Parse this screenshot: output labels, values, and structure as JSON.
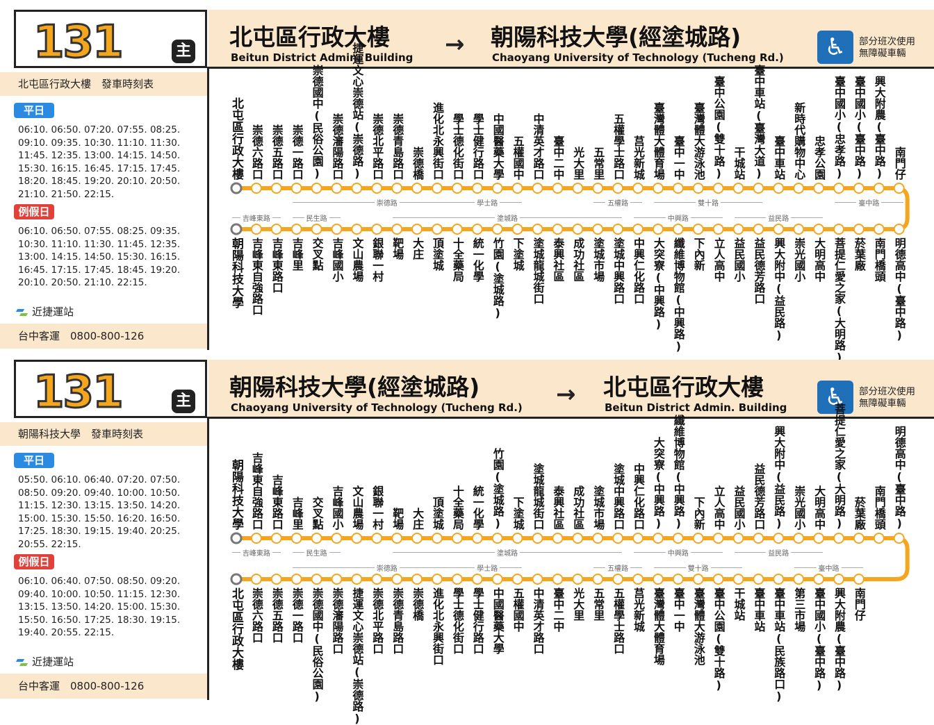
{
  "panels": [
    {
      "route_number": "131",
      "main_badge": "主",
      "from_zh": "北屯區行政大樓",
      "from_en": "Beitun District Admin. Building",
      "to_zh": "朝陽科技大學(經塗城路)",
      "to_en": "Chaoyang University of Technology (Tucheng Rd.)",
      "arrow": "→",
      "accessible_text_1": "部分班次使用",
      "accessible_text_2": "無障礙車輛",
      "schedule_title": "北屯區行政大樓　發車時刻表",
      "weekday_label": "平日",
      "weekday_times": [
        "06:10. 06:50. 07:20. 07:55. 08:25.",
        "09:10. 09:35. 10:30. 11:10. 11:30.",
        "11:45. 12:35. 13:00. 14:15. 14:50.",
        "15:30. 16:15. 16:45. 17:15. 17:45.",
        "18:20. 18:45. 19:20. 20:10. 20:50.",
        "21:10. 21:50. 22:15."
      ],
      "holiday_label": "例假日",
      "holiday_times": [
        "06:10. 06:50. 07:55. 08:25. 09:35.",
        "10:30. 11:10. 11:30. 11:45. 12:35.",
        "13:00. 14:15. 14:50. 15:30. 16:15.",
        "16:45. 17:15. 17:45. 18:45. 19:20.",
        "20:10. 20:50. 21:10. 22:15."
      ],
      "metro_label": "近捷運站",
      "company": "台中客運　0800-800-126",
      "top_stops": [
        "北屯區行政大樓",
        "崇德六路口",
        "崇德五路口",
        "崇德一路口",
        "崇德國中(民俗公園)",
        "崇德瀋陽路口",
        "捷運文心崇德站(崇德路)",
        "崇德北平路口",
        "崇德青島路口",
        "崇德橋",
        "進化北永興街口",
        "學士德化街口",
        "學士健行路口",
        "中國醫藥大學",
        "五權國中",
        "中清英才路口",
        "臺中二中",
        "光大里",
        "五常里",
        "五權學士路口",
        "莒光新城",
        "臺灣體大體育場",
        "臺中一中",
        "臺灣體大游泳池",
        "臺中公園(雙十路)",
        "干城站",
        "臺中車站(臺灣大道)",
        "臺中車站",
        "新時代購物中心",
        "忠孝公園",
        "臺中國小(忠孝路)",
        "臺中國小(臺中路)",
        "興大附農(臺中路)",
        "南門仔"
      ],
      "bottom_stops": [
        "朝陽科技大學",
        "吉峰東自強路口",
        "吉峰東路口",
        "吉峰里",
        "交叉點",
        "吉峰國小",
        "文山農場",
        "銀聯一村",
        "靶場",
        "大庄",
        "頂塗城",
        "十全藥局",
        "統一化學",
        "竹園(塗城路)",
        "下塗城",
        "塗城龍城街口",
        "泰興社區",
        "成功社區",
        "塗城市場",
        "塗城中興路口",
        "中興仁化路口",
        "大突寮(中興路)",
        "纖維博物館(中興路)",
        "下內新",
        "立人高中",
        "益民國小",
        "益民德芳路口",
        "興大附中(益民路)",
        "崇光國小",
        "大明高中",
        "菩提仁愛之家(大明路)",
        "菸葉廠",
        "南門橋頭",
        "明德高中(臺中路)"
      ],
      "top_roads": [
        {
          "name": "崇德路",
          "s": 3,
          "e": 13
        },
        {
          "name": "學士路",
          "s": 11,
          "e": 15
        },
        {
          "name": "五權路",
          "s": 18,
          "e": 21
        },
        {
          "name": "雙十路",
          "s": 21,
          "e": 27
        },
        {
          "name": "臺中路",
          "s": 30,
          "e": 34
        }
      ],
      "bottom_roads": [
        {
          "name": "吉峰東路",
          "s": 0,
          "e": 3
        },
        {
          "name": "民生路",
          "s": 3,
          "e": 6
        },
        {
          "name": "塗城路",
          "s": 8,
          "e": 20
        },
        {
          "name": "中興路",
          "s": 20,
          "e": 25
        },
        {
          "name": "益民路",
          "s": 25,
          "e": 30
        }
      ],
      "metro_top_index": [
        5,
        6,
        7
      ]
    },
    {
      "route_number": "131",
      "main_badge": "主",
      "from_zh": "朝陽科技大學(經塗城路)",
      "from_en": "Chaoyang University of Technology (Tucheng Rd.)",
      "to_zh": "北屯區行政大樓",
      "to_en": "Beitun District Admin. Building",
      "arrow": "→",
      "accessible_text_1": "部分班次使用",
      "accessible_text_2": "無障礙車輛",
      "schedule_title": "朝陽科技大學　發車時刻表",
      "weekday_label": "平日",
      "weekday_times": [
        "05:50. 06:10. 06:40. 07:20. 07:50.",
        "08:50. 09:20. 09:40. 10:00. 10:50.",
        "11:15. 12:30. 13:15. 13:50. 14:20.",
        "15:00. 15:30. 15:50. 16:20. 16:50.",
        "17:25. 18:30. 19:15. 19:40. 20:25.",
        "20:55. 22:15."
      ],
      "holiday_label": "例假日",
      "holiday_times": [
        "06:10. 06:40. 07:50. 08:50. 09:20.",
        "09:40. 10:00. 10:50. 11:15. 12:30.",
        "13:15. 13:50. 14:20. 15:00. 15:30.",
        "15:50. 16:50. 17:25. 18:30. 19:15.",
        "19:40. 20:55. 22:15."
      ],
      "metro_label": "近捷運站",
      "company": "台中客運　0800-800-126",
      "top_stops": [
        "朝陽科技大學",
        "吉峰東自強路口",
        "吉峰東路口",
        "吉峰里",
        "交叉點",
        "吉峰國小",
        "文山農場",
        "銀聯一村",
        "靶場",
        "大庄",
        "頂塗城",
        "十全藥局",
        "統一化學",
        "竹園(塗城路)",
        "下塗城",
        "塗城龍城街口",
        "泰興社區",
        "成功社區",
        "塗城市場",
        "塗城中興路口",
        "中興仁化路口",
        "大突寮(中興路)",
        "纖維博物館(中興路)",
        "下內新",
        "立人高中",
        "益民國小",
        "益民德芳路口",
        "興大附中(益民路)",
        "崇光國小",
        "大明高中",
        "菩提仁愛之家(大明路)",
        "菸葉廠",
        "南門橋頭",
        "明德高中(臺中路)"
      ],
      "bottom_stops": [
        "北屯區行政大樓",
        "崇德六路口",
        "崇德五路口",
        "崇德一路口",
        "崇德國中(民俗公園)",
        "崇德瀋陽路口",
        "捷運文心崇德站(崇德路)",
        "崇德北平路口",
        "崇德青島路口",
        "崇德橋",
        "進化北永興街口",
        "學士德化街口",
        "學士健行路口",
        "中國醫藥大學",
        "五權國中",
        "中清英才路口",
        "臺中二中",
        "光大里",
        "五常里",
        "五權學士路口",
        "莒光新城",
        "臺灣體大體育場",
        "臺中一中",
        "臺灣體大游泳池",
        "臺中公園(雙十路)",
        "干城站",
        "臺中車站",
        "臺中車站(民族路口)",
        "第三市場",
        "臺中國小(臺中路)",
        "興大附農(臺中路)",
        "南門仔"
      ],
      "top_roads": [
        {
          "name": "吉峰東路",
          "s": 0,
          "e": 3
        },
        {
          "name": "民生路",
          "s": 3,
          "e": 6
        },
        {
          "name": "塗城路",
          "s": 8,
          "e": 20
        },
        {
          "name": "中興路",
          "s": 20,
          "e": 25
        },
        {
          "name": "益民路",
          "s": 25,
          "e": 30
        }
      ],
      "bottom_roads": [
        {
          "name": "崇德路",
          "s": 3,
          "e": 13
        },
        {
          "name": "學士路",
          "s": 11,
          "e": 15
        },
        {
          "name": "五權路",
          "s": 18,
          "e": 21
        },
        {
          "name": "雙十路",
          "s": 21,
          "e": 26
        },
        {
          "name": "臺中路",
          "s": 28,
          "e": 32
        }
      ],
      "metro_top_index": []
    }
  ],
  "colors": {
    "accent": "#f4a61e",
    "band": "#fbe7cc",
    "weekday": "#2a8be0",
    "holiday": "#e0413a",
    "wheelchair": "#1f70b8"
  }
}
